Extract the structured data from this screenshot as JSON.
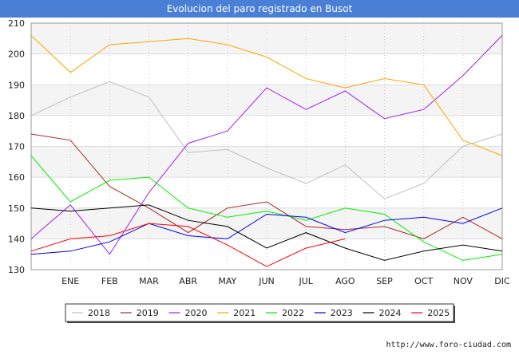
{
  "chart_data": {
    "type": "line",
    "title": "Evolucion del paro registrado en Busot",
    "xlabel": "",
    "ylabel": "",
    "ylim": [
      130,
      210
    ],
    "y_ticks": [
      130,
      140,
      150,
      160,
      170,
      180,
      190,
      200,
      210
    ],
    "categories": [
      "",
      "ENE",
      "FEB",
      "MAR",
      "ABR",
      "MAY",
      "JUN",
      "JUL",
      "AGO",
      "SEP",
      "OCT",
      "NOV",
      "DIC"
    ],
    "legend_position": "bottom",
    "series": [
      {
        "name": "2018",
        "color": "#c0c0c0",
        "values": [
          180,
          186,
          191,
          186,
          168,
          169,
          163,
          158,
          164,
          153,
          158,
          170,
          174
        ]
      },
      {
        "name": "2019",
        "color": "#a52a2a",
        "values": [
          174,
          172,
          157,
          150,
          142,
          150,
          152,
          144,
          143,
          144,
          140,
          147,
          140
        ]
      },
      {
        "name": "2020",
        "color": "#a020f0",
        "values": [
          140,
          151,
          135,
          155,
          171,
          175,
          189,
          182,
          188,
          179,
          182,
          193,
          206
        ]
      },
      {
        "name": "2021",
        "color": "#ffa500",
        "values": [
          206,
          194,
          203,
          204,
          205,
          203,
          199,
          192,
          189,
          192,
          190,
          172,
          167
        ]
      },
      {
        "name": "2022",
        "color": "#00ee00",
        "values": [
          167,
          152,
          159,
          160,
          150,
          147,
          149,
          146,
          150,
          148,
          139,
          133,
          135
        ]
      },
      {
        "name": "2023",
        "color": "#0000ee",
        "values": [
          135,
          136,
          139,
          145,
          141,
          140,
          148,
          147,
          142,
          146,
          147,
          145,
          150
        ]
      },
      {
        "name": "2024",
        "color": "#000000",
        "values": [
          150,
          149,
          150,
          151,
          146,
          144,
          137,
          142,
          137,
          133,
          136,
          138,
          136
        ]
      },
      {
        "name": "2025",
        "color": "#ff0000",
        "values": [
          136,
          140,
          141,
          145,
          144,
          138,
          131,
          137,
          140,
          null,
          null,
          null,
          null
        ]
      }
    ]
  },
  "footer": {
    "url": "http://www.foro-ciudad.com"
  }
}
